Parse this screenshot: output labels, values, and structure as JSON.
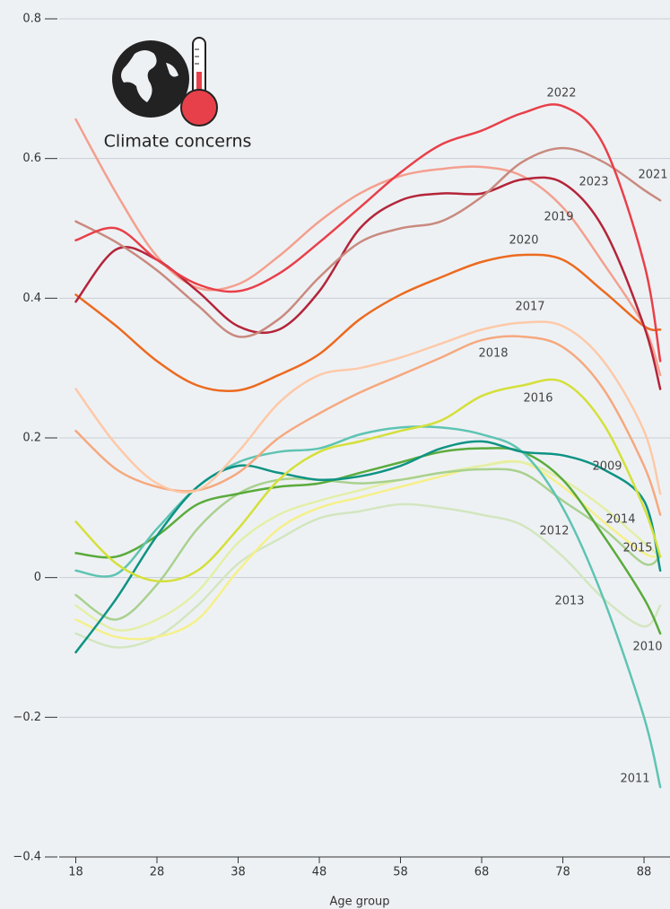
{
  "chart_data": {
    "type": "line",
    "annotation": "Climate concerns",
    "x_label": "Age group",
    "x": [
      18,
      23,
      28,
      33,
      38,
      43,
      48,
      53,
      58,
      63,
      68,
      73,
      78,
      83,
      88,
      90
    ],
    "xlim": [
      16,
      91.2
    ],
    "xticks": [
      18,
      28,
      38,
      48,
      58,
      68,
      78,
      88
    ],
    "ylim": [
      -0.4,
      0.8
    ],
    "yticks": [
      {
        "value": -0.4,
        "label": "−0.4"
      },
      {
        "value": -0.2,
        "label": "−0.2"
      },
      0,
      0.2,
      0.4,
      0.6,
      0.8
    ],
    "grid": true,
    "series": [
      {
        "name": "2022",
        "color": "#e8404a",
        "values": [
          0.483,
          0.5,
          0.455,
          0.42,
          0.41,
          0.435,
          0.48,
          0.53,
          0.58,
          0.62,
          0.64,
          0.665,
          0.675,
          0.62,
          0.45,
          0.31
        ]
      },
      {
        "name": "2021",
        "color": "#c98a7f",
        "values": [
          0.51,
          0.48,
          0.44,
          0.39,
          0.345,
          0.37,
          0.43,
          0.48,
          0.5,
          0.51,
          0.545,
          0.595,
          0.615,
          0.595,
          0.555,
          0.54
        ]
      },
      {
        "name": "2023",
        "color": "#b3253a",
        "values": [
          0.395,
          0.47,
          0.455,
          0.41,
          0.36,
          0.355,
          0.41,
          0.5,
          0.54,
          0.55,
          0.55,
          0.57,
          0.565,
          0.5,
          0.36,
          0.27
        ]
      },
      {
        "name": "2019",
        "color": "#f4a08f",
        "values": [
          0.656,
          0.55,
          0.46,
          0.415,
          0.42,
          0.46,
          0.51,
          0.55,
          0.575,
          0.585,
          0.588,
          0.575,
          0.53,
          0.45,
          0.36,
          0.29
        ]
      },
      {
        "name": "2020",
        "color": "#ec6a1f",
        "values": [
          0.405,
          0.36,
          0.31,
          0.275,
          0.268,
          0.29,
          0.32,
          0.37,
          0.405,
          0.43,
          0.452,
          0.462,
          0.455,
          0.41,
          0.36,
          0.355
        ]
      },
      {
        "name": "2017",
        "color": "#fdc9a8",
        "values": [
          0.27,
          0.19,
          0.135,
          0.125,
          0.18,
          0.25,
          0.29,
          0.3,
          0.315,
          0.335,
          0.355,
          0.365,
          0.36,
          0.31,
          0.21,
          0.12
        ]
      },
      {
        "name": "2018",
        "color": "#f5a97f",
        "values": [
          0.21,
          0.155,
          0.13,
          0.125,
          0.15,
          0.2,
          0.235,
          0.265,
          0.29,
          0.315,
          0.34,
          0.345,
          0.33,
          0.27,
          0.16,
          0.09
        ]
      },
      {
        "name": "2016",
        "color": "#d4e03a",
        "values": [
          0.08,
          0.02,
          -0.005,
          0.01,
          0.07,
          0.14,
          0.18,
          0.195,
          0.21,
          0.225,
          0.26,
          0.275,
          0.28,
          0.22,
          0.1,
          0.03
        ]
      },
      {
        "name": "2009",
        "color": "#0e9384",
        "values": [
          -0.107,
          -0.03,
          0.06,
          0.13,
          0.16,
          0.15,
          0.14,
          0.145,
          0.16,
          0.185,
          0.195,
          0.18,
          0.175,
          0.155,
          0.11,
          0.01
        ]
      },
      {
        "name": "2011",
        "color": "#5ec4b3",
        "values": [
          0.01,
          0.005,
          0.07,
          0.13,
          0.165,
          0.18,
          0.185,
          0.205,
          0.215,
          0.215,
          0.205,
          0.18,
          0.1,
          -0.03,
          -0.2,
          -0.3
        ]
      },
      {
        "name": "2010",
        "color": "#5aab3c",
        "values": [
          0.035,
          0.03,
          0.06,
          0.105,
          0.12,
          0.13,
          0.135,
          0.15,
          0.165,
          0.18,
          0.185,
          0.18,
          0.14,
          0.06,
          -0.03,
          -0.08
        ]
      },
      {
        "name": "2012",
        "color": "#a9d18f",
        "values": [
          -0.025,
          -0.06,
          -0.01,
          0.07,
          0.12,
          0.14,
          0.14,
          0.135,
          0.14,
          0.15,
          0.155,
          0.15,
          0.11,
          0.07,
          0.02,
          0.03
        ]
      },
      {
        "name": "2014",
        "color": "#e3efa8",
        "values": [
          -0.04,
          -0.075,
          -0.06,
          -0.02,
          0.05,
          0.09,
          0.11,
          0.125,
          0.14,
          0.15,
          0.16,
          0.165,
          0.14,
          0.1,
          0.05,
          0.03
        ]
      },
      {
        "name": "2015",
        "color": "#f5f08a",
        "values": [
          -0.06,
          -0.085,
          -0.085,
          -0.06,
          0.01,
          0.07,
          0.1,
          0.115,
          0.13,
          0.145,
          0.16,
          0.165,
          0.13,
          0.08,
          0.035,
          0.03
        ]
      },
      {
        "name": "2013",
        "color": "#d3e6c0",
        "values": [
          -0.08,
          -0.1,
          -0.085,
          -0.04,
          0.02,
          0.055,
          0.085,
          0.095,
          0.105,
          0.1,
          0.09,
          0.075,
          0.03,
          -0.03,
          -0.07,
          -0.04
        ]
      }
    ]
  }
}
